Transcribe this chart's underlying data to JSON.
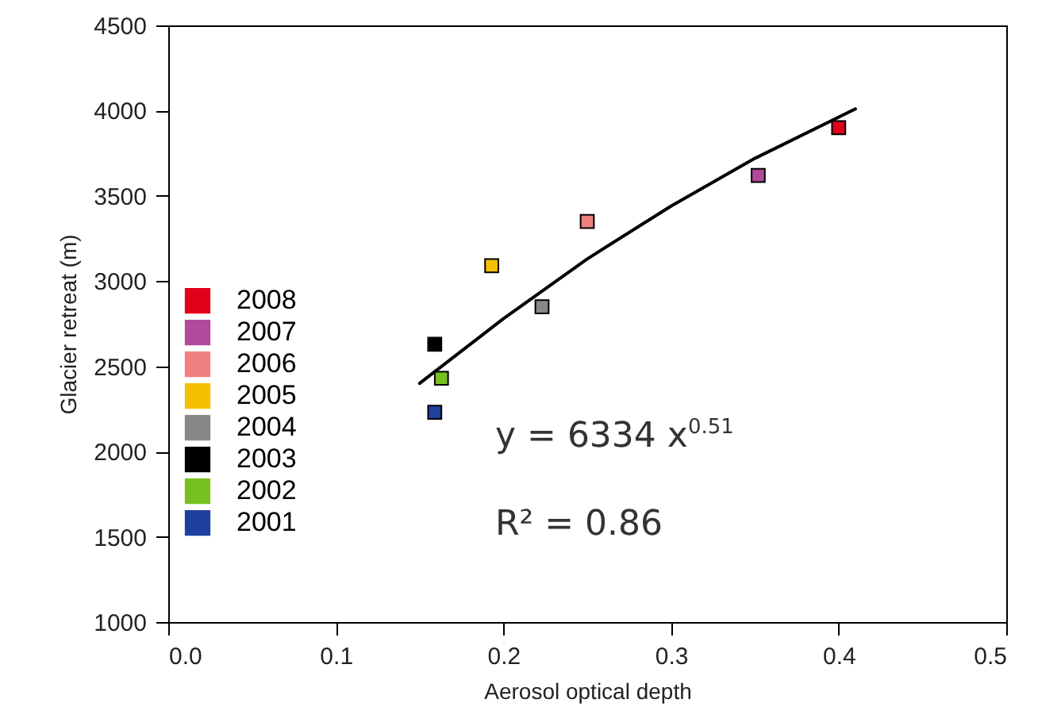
{
  "chart_data": {
    "type": "scatter",
    "xlabel": "Aerosol optical depth",
    "ylabel": "Glacier retreat (m)",
    "xlim": [
      0,
      0.5
    ],
    "xticks": [
      {
        "value": 0,
        "label": "0.0"
      },
      0.1,
      0.2,
      0.3,
      0.4,
      0.5
    ],
    "ylim": [
      1000,
      4500
    ],
    "yticks": [
      1000,
      1500,
      2000,
      2500,
      3000,
      3500,
      4000,
      4500
    ],
    "grid": false,
    "legend": "left",
    "marker": "square",
    "annotations": [
      "y = 6334 x$^{0.51}$",
      "R² = 0.86"
    ],
    "series": [
      {
        "name": "2008",
        "color": "#e0001a",
        "x": [
          0.4
        ],
        "values": [
          3900
        ]
      },
      {
        "name": "2007",
        "color": "#b04a9a",
        "x": [
          0.352
        ],
        "values": [
          3620
        ]
      },
      {
        "name": "2006",
        "color": "#f08080",
        "x": [
          0.25
        ],
        "values": [
          3350
        ]
      },
      {
        "name": "2005",
        "color": "#f5c000",
        "x": [
          0.193
        ],
        "values": [
          3090
        ]
      },
      {
        "name": "2004",
        "color": "#888888",
        "x": [
          0.223
        ],
        "values": [
          2850
        ]
      },
      {
        "name": "2003",
        "color": "#000000",
        "x": [
          0.159
        ],
        "values": [
          2630
        ]
      },
      {
        "name": "2002",
        "color": "#78c020",
        "x": [
          0.163
        ],
        "values": [
          2430
        ]
      },
      {
        "name": "2001",
        "color": "#2040a0",
        "x": [
          0.159
        ],
        "values": [
          2230
        ]
      },
      {
        "type": "line",
        "color": "#000000",
        "marker": "none",
        "line_style": "solid",
        "x": [
          0.15,
          0.2,
          0.25,
          0.3,
          0.35,
          0.41
        ],
        "values": [
          2400,
          2780,
          3130,
          3440,
          3720,
          4010
        ]
      }
    ]
  }
}
